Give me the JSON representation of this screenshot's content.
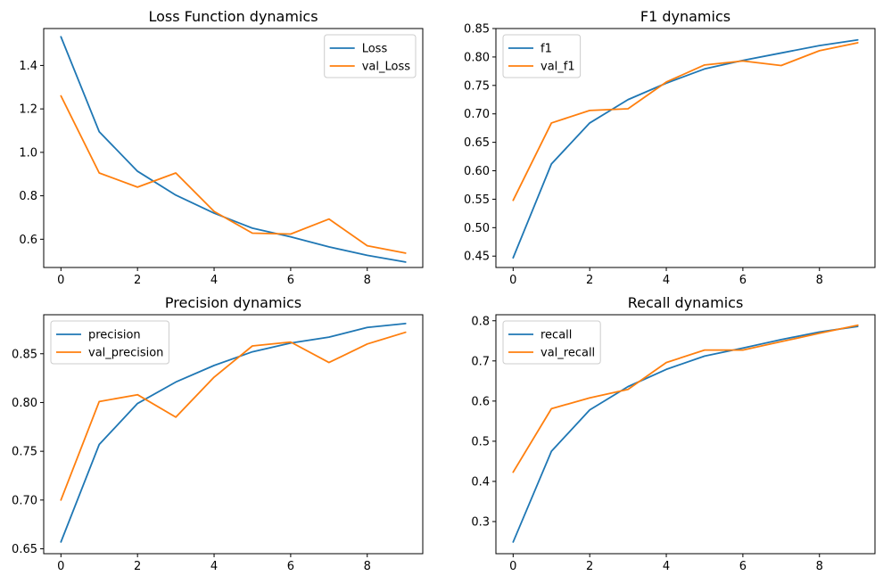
{
  "chart_data": [
    {
      "type": "line",
      "title": "Loss Function dynamics",
      "xlabel": "",
      "ylabel": "",
      "x": [
        0,
        1,
        2,
        3,
        4,
        5,
        6,
        7,
        8,
        9
      ],
      "xlim": [
        -0.45,
        9.45
      ],
      "ylim": [
        0.47,
        1.57
      ],
      "xticks": [
        0,
        2,
        4,
        6,
        8
      ],
      "yticks": [
        0.6,
        0.8,
        1.0,
        1.2,
        1.4
      ],
      "ytick_labels": [
        "0.6",
        "0.8",
        "1.0",
        "1.2",
        "1.4"
      ],
      "legend_position": "top-right",
      "grid": false,
      "series": [
        {
          "name": "Loss",
          "color": "#1f77b4",
          "values": [
            1.532,
            1.095,
            0.913,
            0.803,
            0.72,
            0.651,
            0.611,
            0.565,
            0.526,
            0.495
          ]
        },
        {
          "name": "val_Loss",
          "color": "#ff7f0e",
          "values": [
            1.26,
            0.905,
            0.84,
            0.905,
            0.728,
            0.628,
            0.624,
            0.693,
            0.57,
            0.536
          ]
        }
      ]
    },
    {
      "type": "line",
      "title": "F1 dynamics",
      "xlabel": "",
      "ylabel": "",
      "x": [
        0,
        1,
        2,
        3,
        4,
        5,
        6,
        7,
        8,
        9
      ],
      "xlim": [
        -0.45,
        9.45
      ],
      "ylim": [
        0.43,
        0.85
      ],
      "xticks": [
        0,
        2,
        4,
        6,
        8
      ],
      "yticks": [
        0.45,
        0.5,
        0.55,
        0.6,
        0.65,
        0.7,
        0.75,
        0.8,
        0.85
      ],
      "ytick_labels": [
        "0.45",
        "0.50",
        "0.55",
        "0.60",
        "0.65",
        "0.70",
        "0.75",
        "0.80",
        "0.85"
      ],
      "legend_position": "top-left",
      "grid": false,
      "series": [
        {
          "name": "f1",
          "color": "#1f77b4",
          "values": [
            0.447,
            0.612,
            0.684,
            0.725,
            0.754,
            0.779,
            0.794,
            0.807,
            0.82,
            0.83
          ]
        },
        {
          "name": "val_f1",
          "color": "#ff7f0e",
          "values": [
            0.548,
            0.684,
            0.706,
            0.709,
            0.756,
            0.786,
            0.793,
            0.785,
            0.811,
            0.825
          ]
        }
      ]
    },
    {
      "type": "line",
      "title": "Precision dynamics",
      "xlabel": "",
      "ylabel": "",
      "x": [
        0,
        1,
        2,
        3,
        4,
        5,
        6,
        7,
        8,
        9
      ],
      "xlim": [
        -0.45,
        9.45
      ],
      "ylim": [
        0.645,
        0.89
      ],
      "xticks": [
        0,
        2,
        4,
        6,
        8
      ],
      "yticks": [
        0.65,
        0.7,
        0.75,
        0.8,
        0.85
      ],
      "ytick_labels": [
        "0.65",
        "0.70",
        "0.75",
        "0.80",
        "0.85"
      ],
      "legend_position": "top-left",
      "grid": false,
      "series": [
        {
          "name": "precision",
          "color": "#1f77b4",
          "values": [
            0.657,
            0.757,
            0.799,
            0.821,
            0.838,
            0.852,
            0.861,
            0.867,
            0.877,
            0.881
          ]
        },
        {
          "name": "val_precision",
          "color": "#ff7f0e",
          "values": [
            0.7,
            0.801,
            0.808,
            0.785,
            0.826,
            0.858,
            0.862,
            0.841,
            0.86,
            0.872
          ]
        }
      ]
    },
    {
      "type": "line",
      "title": "Recall dynamics",
      "xlabel": "",
      "ylabel": "",
      "x": [
        0,
        1,
        2,
        3,
        4,
        5,
        6,
        7,
        8,
        9
      ],
      "xlim": [
        -0.45,
        9.45
      ],
      "ylim": [
        0.22,
        0.815
      ],
      "xticks": [
        0,
        2,
        4,
        6,
        8
      ],
      "yticks": [
        0.3,
        0.4,
        0.5,
        0.6,
        0.7,
        0.8
      ],
      "ytick_labels": [
        "0.3",
        "0.4",
        "0.5",
        "0.6",
        "0.7",
        "0.8"
      ],
      "legend_position": "top-left",
      "grid": false,
      "series": [
        {
          "name": "recall",
          "color": "#1f77b4",
          "values": [
            0.249,
            0.475,
            0.578,
            0.636,
            0.679,
            0.712,
            0.732,
            0.753,
            0.772,
            0.786
          ]
        },
        {
          "name": "val_recall",
          "color": "#ff7f0e",
          "values": [
            0.423,
            0.581,
            0.608,
            0.629,
            0.696,
            0.727,
            0.727,
            0.748,
            0.769,
            0.789
          ]
        }
      ]
    }
  ]
}
